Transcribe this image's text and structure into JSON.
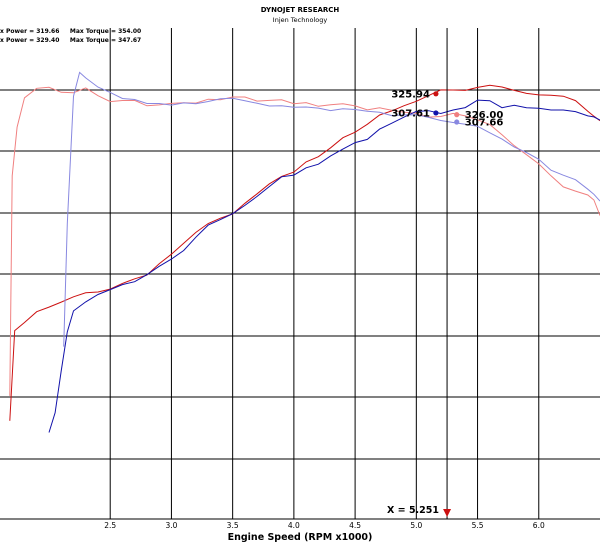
{
  "header": {
    "title": "DYNOJET RESEARCH",
    "subtitle": "Injen Technology"
  },
  "legend": {
    "line1_power": "x Power = 319.66",
    "line1_torque": "Max Torque = 354.00",
    "line2_power": "x Power = 329.40",
    "line2_torque": "Max Torque = 347.67"
  },
  "colors": {
    "red": "#cc1111",
    "light_red": "#f08080",
    "blue": "#1111aa",
    "light_blue": "#8888e0",
    "grid": "#000000",
    "cursor_marker": "#cc1111"
  },
  "chart_data": {
    "type": "line",
    "xlabel": "Engine Speed (RPM x1000)",
    "xlim": [
      1.6,
      6.5
    ],
    "ylim": [
      0,
      1
    ],
    "x_ticks": [
      "2.5",
      "3.0",
      "3.5",
      "4.0",
      "4.5",
      "5.0",
      "5.5",
      "6.0"
    ],
    "x_tick_values": [
      2.5,
      3.0,
      3.5,
      4.0,
      4.5,
      5.0,
      5.5,
      6.0
    ],
    "grid": true,
    "cursor": {
      "x": 5.251,
      "label": "X = 5.251"
    },
    "data_labels": [
      {
        "text": "325.94",
        "series": "red_power",
        "x": 5.16,
        "side": "left"
      },
      {
        "text": "326.00",
        "series": "light_red_torque",
        "x": 5.33,
        "side": "right"
      },
      {
        "text": "307.61",
        "series": "blue_power",
        "x": 5.16,
        "side": "left"
      },
      {
        "text": "307.66",
        "series": "light_blue_torque",
        "x": 5.33,
        "side": "right"
      }
    ],
    "series": [
      {
        "color_key": "red",
        "x": [
          1.68,
          1.72,
          1.8,
          1.9,
          2.0,
          2.1,
          2.2,
          2.3,
          2.4,
          2.5,
          2.6,
          2.7,
          2.8,
          2.9,
          3.0,
          3.1,
          3.2,
          3.3,
          3.4,
          3.5,
          3.6,
          3.7,
          3.8,
          3.9,
          4.0,
          4.1,
          4.2,
          4.3,
          4.4,
          4.5,
          4.6,
          4.7,
          4.8,
          4.9,
          5.0,
          5.1,
          5.2,
          5.3,
          5.4,
          5.5,
          5.6,
          5.7,
          5.8,
          5.9,
          6.0,
          6.1,
          6.2,
          6.3,
          6.4,
          6.45,
          6.5
        ],
        "y": [
          0.2,
          0.38,
          0.4,
          0.42,
          0.43,
          0.44,
          0.45,
          0.46,
          0.465,
          0.47,
          0.48,
          0.49,
          0.5,
          0.52,
          0.54,
          0.56,
          0.58,
          0.6,
          0.61,
          0.62,
          0.64,
          0.66,
          0.68,
          0.7,
          0.71,
          0.73,
          0.74,
          0.76,
          0.78,
          0.79,
          0.8,
          0.82,
          0.83,
          0.84,
          0.85,
          0.86,
          0.87,
          0.87,
          0.875,
          0.88,
          0.885,
          0.88,
          0.875,
          0.87,
          0.865,
          0.86,
          0.86,
          0.85,
          0.83,
          0.82,
          0.81
        ]
      },
      {
        "color_key": "light_red",
        "x": [
          1.68,
          1.7,
          1.74,
          1.8,
          1.9,
          2.0,
          2.1,
          2.2,
          2.3,
          2.4,
          2.5,
          2.6,
          2.7,
          2.8,
          2.9,
          3.0,
          3.1,
          3.2,
          3.3,
          3.4,
          3.5,
          3.6,
          3.7,
          3.8,
          3.9,
          4.0,
          4.1,
          4.2,
          4.3,
          4.4,
          4.5,
          4.6,
          4.7,
          4.8,
          4.9,
          5.0,
          5.1,
          5.2,
          5.3,
          5.4,
          5.5,
          5.6,
          5.7,
          5.8,
          5.9,
          6.0,
          6.1,
          6.2,
          6.3,
          6.4,
          6.45,
          6.5
        ],
        "y": [
          0.25,
          0.7,
          0.8,
          0.86,
          0.88,
          0.88,
          0.87,
          0.87,
          0.88,
          0.86,
          0.85,
          0.85,
          0.85,
          0.84,
          0.84,
          0.845,
          0.85,
          0.85,
          0.855,
          0.855,
          0.86,
          0.86,
          0.855,
          0.85,
          0.85,
          0.845,
          0.845,
          0.84,
          0.84,
          0.845,
          0.84,
          0.835,
          0.84,
          0.835,
          0.83,
          0.83,
          0.82,
          0.82,
          0.825,
          0.82,
          0.81,
          0.8,
          0.78,
          0.76,
          0.74,
          0.72,
          0.7,
          0.68,
          0.67,
          0.66,
          0.65,
          0.62
        ]
      },
      {
        "color_key": "blue",
        "x": [
          2.0,
          2.05,
          2.1,
          2.15,
          2.2,
          2.3,
          2.4,
          2.5,
          2.6,
          2.7,
          2.8,
          2.9,
          3.0,
          3.1,
          3.2,
          3.3,
          3.4,
          3.5,
          3.6,
          3.7,
          3.8,
          3.9,
          4.0,
          4.1,
          4.2,
          4.3,
          4.4,
          4.5,
          4.6,
          4.7,
          4.8,
          4.9,
          5.0,
          5.1,
          5.2,
          5.3,
          5.4,
          5.5,
          5.6,
          5.7,
          5.8,
          5.9,
          6.0,
          6.1,
          6.2,
          6.3,
          6.4,
          6.45,
          6.5
        ],
        "y": [
          0.18,
          0.22,
          0.3,
          0.38,
          0.42,
          0.44,
          0.455,
          0.465,
          0.475,
          0.485,
          0.5,
          0.515,
          0.53,
          0.55,
          0.575,
          0.6,
          0.61,
          0.62,
          0.635,
          0.655,
          0.675,
          0.695,
          0.7,
          0.715,
          0.725,
          0.74,
          0.755,
          0.77,
          0.775,
          0.795,
          0.81,
          0.82,
          0.83,
          0.83,
          0.825,
          0.83,
          0.835,
          0.85,
          0.85,
          0.84,
          0.845,
          0.84,
          0.84,
          0.835,
          0.835,
          0.83,
          0.82,
          0.815,
          0.81
        ]
      },
      {
        "color_key": "light_blue",
        "x": [
          2.12,
          2.15,
          2.2,
          2.25,
          2.3,
          2.4,
          2.5,
          2.6,
          2.7,
          2.8,
          2.9,
          3.0,
          3.1,
          3.2,
          3.3,
          3.4,
          3.5,
          3.6,
          3.7,
          3.8,
          3.9,
          4.0,
          4.1,
          4.2,
          4.3,
          4.4,
          4.5,
          4.6,
          4.7,
          4.8,
          4.9,
          5.0,
          5.1,
          5.2,
          5.3,
          5.4,
          5.5,
          5.6,
          5.7,
          5.8,
          5.9,
          6.0,
          6.1,
          6.2,
          6.3,
          6.4,
          6.45,
          6.5
        ],
        "y": [
          0.35,
          0.6,
          0.86,
          0.91,
          0.9,
          0.88,
          0.87,
          0.86,
          0.855,
          0.85,
          0.845,
          0.84,
          0.845,
          0.845,
          0.85,
          0.855,
          0.855,
          0.85,
          0.85,
          0.845,
          0.845,
          0.84,
          0.84,
          0.84,
          0.835,
          0.835,
          0.83,
          0.83,
          0.825,
          0.82,
          0.82,
          0.82,
          0.82,
          0.815,
          0.81,
          0.805,
          0.8,
          0.79,
          0.775,
          0.76,
          0.745,
          0.73,
          0.71,
          0.7,
          0.69,
          0.67,
          0.66,
          0.65
        ]
      }
    ]
  }
}
